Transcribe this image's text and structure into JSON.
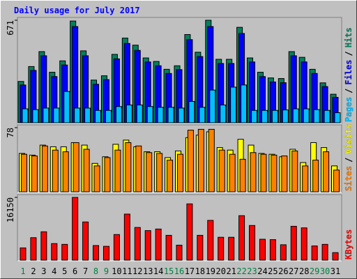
{
  "title": "Daily usage for July 2017",
  "legend_separator": "/",
  "chart_data": [
    {
      "type": "bar",
      "ylim": [
        0,
        671
      ],
      "yticks": [
        671
      ],
      "series": [
        {
          "name": "Pages",
          "color": "#00c0ff",
          "values": [
            95,
            90,
            100,
            100,
            208,
            100,
            100,
            85,
            85,
            110,
            120,
            120,
            110,
            105,
            105,
            100,
            143,
            105,
            217,
            120,
            236,
            250,
            85,
            85,
            85,
            88,
            95,
            95,
            90,
            85,
            70
          ]
        },
        {
          "name": "Files",
          "color": "#0000ff",
          "values": [
            250,
            345,
            440,
            305,
            380,
            630,
            440,
            255,
            285,
            420,
            520,
            475,
            400,
            375,
            325,
            350,
            545,
            435,
            630,
            390,
            390,
            585,
            400,
            305,
            270,
            265,
            440,
            400,
            325,
            240,
            170
          ]
        },
        {
          "name": "Hits",
          "color": "#00805c",
          "values": [
            273,
            370,
            467,
            333,
            407,
            666,
            472,
            282,
            310,
            449,
            555,
            509,
            426,
            403,
            352,
            375,
            578,
            463,
            671,
            417,
            417,
            625,
            426,
            333,
            296,
            292,
            467,
            430,
            352,
            264,
            190
          ]
        }
      ]
    },
    {
      "type": "bar",
      "ylim": [
        0,
        78
      ],
      "yticks": [
        78
      ],
      "series": [
        {
          "name": "Sites",
          "color": "#ff8000",
          "values": [
            46,
            44,
            56,
            51,
            49,
            60,
            52,
            32,
            42,
            51,
            60,
            56,
            48,
            47,
            39,
            46,
            75,
            76,
            76,
            51,
            46,
            40,
            48,
            46,
            45,
            44,
            50,
            32,
            39,
            49,
            27
          ]
        },
        {
          "name": "Visits",
          "color": "#ffff00",
          "values": [
            47,
            45,
            57,
            55,
            55,
            60,
            57,
            35,
            43,
            58,
            63,
            55,
            49,
            49,
            42,
            50,
            66,
            69,
            73,
            54,
            51,
            64,
            57,
            47,
            46,
            43,
            52,
            36,
            60,
            54,
            32
          ]
        }
      ]
    },
    {
      "type": "bar",
      "ylim": [
        0,
        16150
      ],
      "yticks": [
        16150
      ],
      "categories": [
        "1",
        "2",
        "3",
        "4",
        "5",
        "6",
        "7",
        "8",
        "9",
        "10",
        "11",
        "12",
        "13",
        "14",
        "15",
        "16",
        "17",
        "18",
        "19",
        "20",
        "21",
        "22",
        "23",
        "24",
        "25",
        "26",
        "27",
        "28",
        "29",
        "30",
        "31"
      ],
      "category_colors": [
        "#008040",
        "#000000",
        "#000000",
        "#000000",
        "#000000",
        "#000000",
        "#000000",
        "#008040",
        "#008040",
        "#000000",
        "#000000",
        "#000000",
        "#000000",
        "#000000",
        "#008040",
        "#008040",
        "#000000",
        "#000000",
        "#000000",
        "#000000",
        "#000000",
        "#008040",
        "#008040",
        "#000000",
        "#000000",
        "#000000",
        "#000000",
        "#000000",
        "#008040",
        "#008040",
        "#000000"
      ],
      "series": [
        {
          "name": "KBytes",
          "color": "#ff0000",
          "values": [
            3300,
            5900,
            7400,
            4400,
            4200,
            16150,
            9900,
            3900,
            3700,
            6700,
            11900,
            8500,
            7700,
            8100,
            6500,
            4000,
            14500,
            6500,
            10300,
            6000,
            6000,
            11500,
            9000,
            5500,
            5400,
            4100,
            8800,
            8400,
            3800,
            4200,
            2100
          ]
        }
      ]
    }
  ]
}
